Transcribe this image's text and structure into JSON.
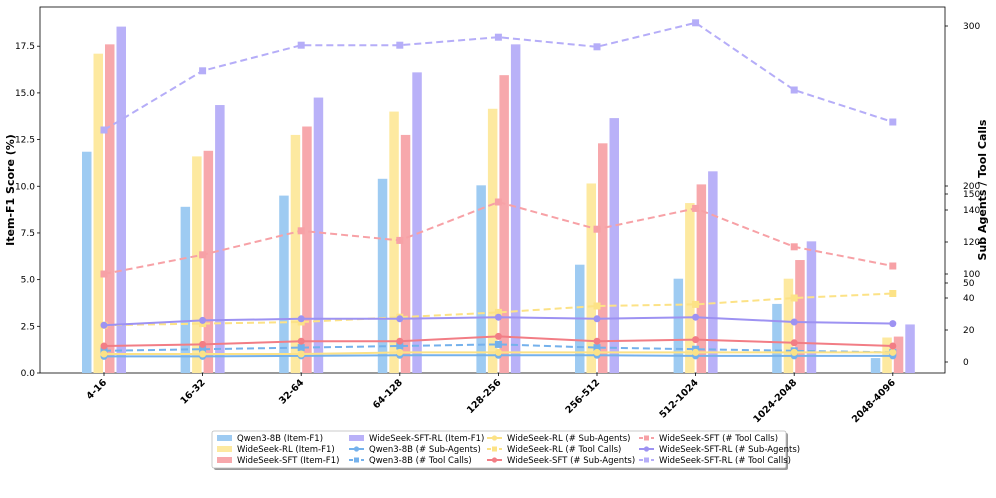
{
  "chart_data": {
    "type": "bar+line",
    "title": "",
    "xlabel": "",
    "ylabel": "Item-F1 Score (%)",
    "y2label": "Sub Agents / Tool Calls",
    "ylim": [
      0,
      19.6
    ],
    "yticks": [
      "0.0",
      "2.5",
      "5.0",
      "7.5",
      "10.0",
      "12.5",
      "15.0",
      "17.5"
    ],
    "y2ticks": [
      "0",
      "20",
      "40",
      "50",
      "100",
      "120",
      "140",
      "150",
      "200",
      "300"
    ],
    "categories": [
      "4-16",
      "16-32",
      "32-64",
      "64-128",
      "128-256",
      "256-512",
      "512-1024",
      "1024-2048",
      "2048-4096"
    ],
    "bar_series": [
      {
        "name": "Qwen3-8B (Item-F1)",
        "color": "#9ecbf2",
        "values": [
          11.85,
          8.9,
          9.5,
          10.4,
          10.05,
          5.8,
          5.05,
          3.7,
          0.8
        ]
      },
      {
        "name": "WideSeek-RL (Item-F1)",
        "color": "#fde9a0",
        "values": [
          17.1,
          11.6,
          12.75,
          14.0,
          14.15,
          10.15,
          9.1,
          5.05,
          1.9
        ]
      },
      {
        "name": "WideSeek-SFT (Item-F1)",
        "color": "#f7a8ac",
        "values": [
          17.6,
          11.9,
          13.2,
          12.75,
          15.95,
          12.3,
          10.1,
          6.05,
          1.95
        ]
      },
      {
        "name": "WideSeek-SFT-RL (Item-F1)",
        "color": "#b9b1f8",
        "values": [
          18.55,
          14.35,
          14.75,
          16.1,
          17.6,
          13.65,
          10.8,
          7.05,
          2.6
        ]
      }
    ],
    "line_series": [
      {
        "name": "Qwen3-8B (# Sub-Agents)",
        "color": "#74b1ec",
        "dash": "solid",
        "values": [
          3.5,
          3.5,
          3.8,
          4.2,
          4.2,
          4.2,
          3.8,
          3.8,
          3.8
        ]
      },
      {
        "name": "Qwen3-8B (# Tool Calls)",
        "color": "#74b1ec",
        "dash": "dashed",
        "values": [
          7,
          8,
          9,
          10,
          11,
          9,
          8,
          7,
          6
        ]
      },
      {
        "name": "WideSeek-RL (# Sub-Agents)",
        "color": "#fce286",
        "dash": "solid",
        "values": [
          5,
          5,
          5,
          6,
          6,
          6,
          6,
          6,
          6
        ]
      },
      {
        "name": "WideSeek-RL (# Tool Calls)",
        "color": "#fce286",
        "dash": "dashed",
        "values": [
          23,
          24,
          25,
          28,
          31,
          35,
          36,
          40,
          43
        ]
      },
      {
        "name": "WideSeek-SFT (# Sub-Agents)",
        "color": "#f27d85",
        "dash": "solid",
        "values": [
          10,
          11,
          13,
          13,
          16,
          13,
          14,
          12,
          10
        ]
      },
      {
        "name": "WideSeek-SFT (# Tool Calls)",
        "color": "#f7a1a6",
        "dash": "dashed",
        "values": [
          100,
          112,
          127,
          121,
          145,
          128,
          141,
          117,
          105
        ]
      },
      {
        "name": "WideSeek-SFT-RL (# Sub-Agents)",
        "color": "#9d92f2",
        "dash": "solid",
        "values": [
          23,
          26,
          27,
          27,
          28,
          27,
          28,
          25,
          24
        ]
      },
      {
        "name": "WideSeek-SFT-RL (# Tool Calls)",
        "color": "#b5adf8",
        "dash": "dashed",
        "values": [
          235,
          272,
          288,
          288,
          293,
          287,
          302,
          260,
          240
        ]
      }
    ],
    "legend": {
      "placement": "bottom-center",
      "columns": [
        [
          "Qwen3-8B (Item-F1)",
          "WideSeek-RL (Item-F1)",
          "WideSeek-SFT (Item-F1)"
        ],
        [
          "WideSeek-SFT-RL (Item-F1)",
          "Qwen3-8B (# Sub-Agents)",
          "Qwen3-8B (# Tool Calls)"
        ],
        [
          "WideSeek-RL (# Sub-Agents)",
          "WideSeek-RL (# Tool Calls)",
          "WideSeek-SFT (# Sub-Agents)"
        ],
        [
          "WideSeek-SFT (# Tool Calls)",
          "WideSeek-SFT-RL (# Sub-Agents)",
          "WideSeek-SFT-RL (# Tool Calls)"
        ]
      ]
    }
  }
}
